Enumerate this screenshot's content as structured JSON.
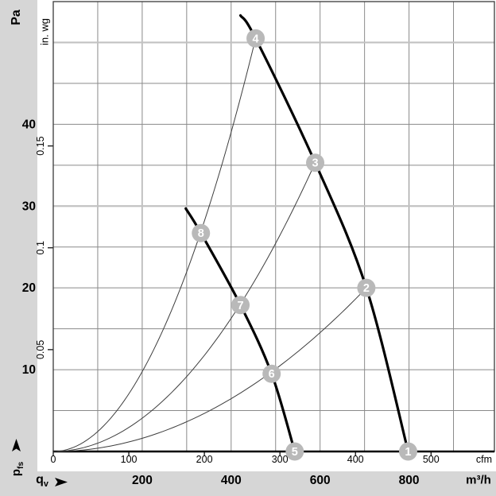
{
  "labels": {
    "pa_unit": "Pa",
    "inwg_unit": "in. wg",
    "cfm_unit": "cfm",
    "m3h_unit": "m³/h",
    "p_symbol": "p",
    "p_sub": "fs",
    "q_symbol": "q",
    "q_sub": "v",
    "p_axis_arrow_icon": "arrow-up",
    "q_axis_arrow_icon": "arrow-right"
  },
  "colors": {
    "page_bg": "#d6d6d6",
    "plot_bg": "#ffffff",
    "grid": "#8a8a8a",
    "grid_light": "#c2c2c2",
    "border": "#3a3a3a",
    "axis": "#000000",
    "curve_thick": "#000000",
    "curve_thin": "#3d3d3d",
    "marker_fill": "#b9b9b9",
    "marker_text": "#ffffff",
    "text": "#000000"
  },
  "chart_data": {
    "type": "line",
    "title": "",
    "xlabel": "qv",
    "ylabel": "pfs",
    "grid": true,
    "legend": false,
    "x_axis": {
      "unit": "m³/h",
      "range": [
        0,
        992
      ],
      "gridline_step_m3h": 100,
      "ticks_bold": [
        200,
        400,
        600,
        800
      ]
    },
    "x_axis_secondary": {
      "unit": "cfm",
      "ticks": [
        0,
        100,
        200,
        300,
        400,
        500
      ],
      "m3h_per_cfm": 1.699
    },
    "y_axis": {
      "unit": "Pa",
      "range": [
        0,
        55
      ],
      "gridline_step_pa": 5,
      "ticks": [
        10,
        20,
        30,
        40
      ],
      "light_gridlines_pa": [
        30,
        50
      ]
    },
    "y_axis_secondary": {
      "unit": "in. wg",
      "ticks": [
        0.05,
        0.1,
        0.15
      ],
      "pa_per_inwg": 249
    },
    "series": [
      {
        "name": "fan-curve-high-speed",
        "style": "thick",
        "points": [
          [
            421,
            53.3
          ],
          [
            455,
            50.5
          ],
          [
            589,
            35.3
          ],
          [
            704,
            20
          ],
          [
            798,
            0
          ]
        ]
      },
      {
        "name": "fan-curve-low-speed",
        "style": "thick",
        "points": [
          [
            298,
            29.7
          ],
          [
            332,
            26.7
          ],
          [
            421,
            17.9
          ],
          [
            491,
            9.5
          ],
          [
            543,
            0
          ]
        ]
      },
      {
        "name": "load-line-1",
        "style": "thin-parabola",
        "end_point": [
          455,
          50.5
        ]
      },
      {
        "name": "load-line-2",
        "style": "thin-parabola",
        "end_point": [
          589,
          35.3
        ]
      },
      {
        "name": "load-line-3",
        "style": "thin-parabola",
        "end_point": [
          704,
          20
        ]
      }
    ],
    "markers": [
      {
        "label": "1",
        "q_m3h": 798,
        "p_pa": 0
      },
      {
        "label": "2",
        "q_m3h": 704,
        "p_pa": 20
      },
      {
        "label": "3",
        "q_m3h": 589,
        "p_pa": 35.3
      },
      {
        "label": "4",
        "q_m3h": 455,
        "p_pa": 50.5
      },
      {
        "label": "5",
        "q_m3h": 543,
        "p_pa": 0
      },
      {
        "label": "6",
        "q_m3h": 491,
        "p_pa": 9.5
      },
      {
        "label": "7",
        "q_m3h": 421,
        "p_pa": 17.9
      },
      {
        "label": "8",
        "q_m3h": 332,
        "p_pa": 26.7
      }
    ]
  }
}
